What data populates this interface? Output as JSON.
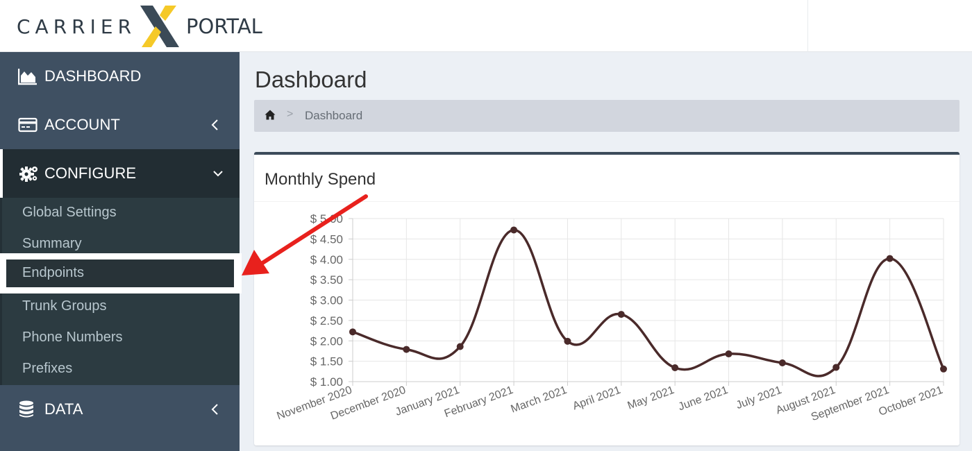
{
  "header": {
    "logo_left": "CARRIER",
    "logo_right": "PORTAL",
    "logo_accent_color": "#f5c928",
    "logo_dark_color": "#3b4a57"
  },
  "sidebar": {
    "items": [
      {
        "label": "DASHBOARD",
        "icon": "area-chart-icon"
      },
      {
        "label": "ACCOUNT",
        "icon": "credit-card-icon",
        "chevron": "chevron-left-icon"
      },
      {
        "label": "CONFIGURE",
        "icon": "gears-icon",
        "chevron": "chevron-down-icon",
        "active": true
      },
      {
        "label": "DATA",
        "icon": "database-icon",
        "chevron": "chevron-left-icon"
      }
    ],
    "configure_submenu": [
      {
        "label": "Global Settings"
      },
      {
        "label": "Summary"
      },
      {
        "label": "Endpoints",
        "highlighted": true
      },
      {
        "label": "Trunk Groups"
      },
      {
        "label": "Phone Numbers"
      },
      {
        "label": "Prefixes"
      }
    ]
  },
  "main": {
    "title": "Dashboard",
    "breadcrumb": {
      "home_icon": "home-icon",
      "separator": ">",
      "current": "Dashboard"
    },
    "panel_title": "Monthly Spend"
  },
  "chart_data": {
    "type": "line",
    "title": "Monthly Spend",
    "categories": [
      "November 2020",
      "December 2020",
      "January 2021",
      "February 2021",
      "March 2021",
      "April 2021",
      "May 2021",
      "June 2021",
      "July 2021",
      "August 2021",
      "September 2021",
      "October 2021"
    ],
    "series": [
      {
        "values": [
          2.22,
          1.79,
          1.86,
          4.72,
          1.99,
          2.65,
          1.34,
          1.68,
          1.46,
          1.35,
          4.02,
          1.31
        ],
        "color": "#4a2a2a"
      }
    ],
    "ylim": [
      1.0,
      5.0
    ],
    "yticks": [
      "$ 5.00",
      "$ 4.50",
      "$ 4.00",
      "$ 3.50",
      "$ 3.00",
      "$ 2.50",
      "$ 2.00",
      "$ 1.50",
      "$ 1.00"
    ],
    "grid": true,
    "legend": "none"
  },
  "annotation": {
    "arrow_color": "#e8211d",
    "target": "Endpoints"
  }
}
